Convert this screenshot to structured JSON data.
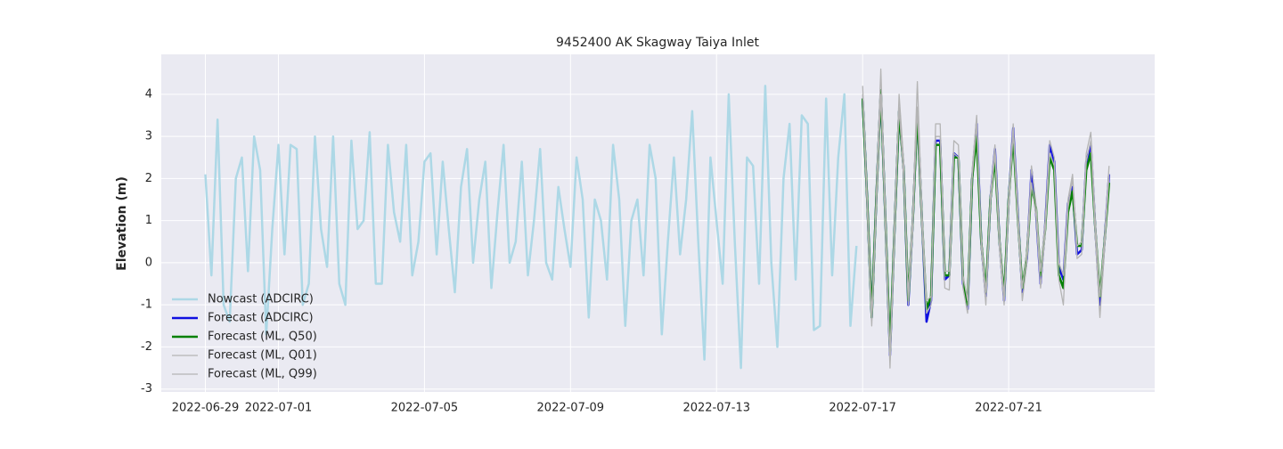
{
  "chart_data": {
    "type": "line",
    "title": "9452400 AK Skagway Taiya Inlet",
    "ylabel": "Elevation (m)",
    "xlim": [
      "2022-06-27T19:00",
      "2022-07-25T00:00"
    ],
    "xticks": [
      "2022-06-29",
      "2022-07-01",
      "2022-07-05",
      "2022-07-09",
      "2022-07-13",
      "2022-07-17",
      "2022-07-21"
    ],
    "ylim": [
      -3.07,
      4.95
    ],
    "yticks": [
      -3,
      -2,
      -1,
      0,
      1,
      2,
      3,
      4
    ],
    "grid": true,
    "legend": "lower left",
    "series": [
      {
        "name": "Nowcast (ADCIRC)",
        "color": "#add8e6",
        "width": 2.5,
        "x": [
          "2022-06-29T00:00",
          "2022-06-29T04:00",
          "2022-06-29T08:00",
          "2022-06-29T12:00",
          "2022-06-29T16:00",
          "2022-06-29T20:00",
          "2022-06-30T00:00",
          "2022-06-30T04:00",
          "2022-06-30T08:00",
          "2022-06-30T12:00",
          "2022-06-30T16:00",
          "2022-06-30T20:00",
          "2022-07-01T00:00",
          "2022-07-01T04:00",
          "2022-07-01T08:00",
          "2022-07-01T12:00",
          "2022-07-01T16:00",
          "2022-07-01T20:00",
          "2022-07-02T00:00",
          "2022-07-02T04:00",
          "2022-07-02T08:00",
          "2022-07-02T12:00",
          "2022-07-02T16:00",
          "2022-07-02T20:00",
          "2022-07-03T00:00",
          "2022-07-03T04:00",
          "2022-07-03T08:00",
          "2022-07-03T12:00",
          "2022-07-03T16:00",
          "2022-07-03T20:00",
          "2022-07-04T00:00",
          "2022-07-04T04:00",
          "2022-07-04T08:00",
          "2022-07-04T12:00",
          "2022-07-04T16:00",
          "2022-07-04T20:00",
          "2022-07-05T00:00",
          "2022-07-05T04:00",
          "2022-07-05T08:00",
          "2022-07-05T12:00",
          "2022-07-05T16:00",
          "2022-07-05T20:00",
          "2022-07-06T00:00",
          "2022-07-06T04:00",
          "2022-07-06T08:00",
          "2022-07-06T12:00",
          "2022-07-06T16:00",
          "2022-07-06T20:00",
          "2022-07-07T00:00",
          "2022-07-07T04:00",
          "2022-07-07T08:00",
          "2022-07-07T12:00",
          "2022-07-07T16:00",
          "2022-07-07T20:00",
          "2022-07-08T00:00",
          "2022-07-08T04:00",
          "2022-07-08T08:00",
          "2022-07-08T12:00",
          "2022-07-08T16:00",
          "2022-07-08T20:00",
          "2022-07-09T00:00",
          "2022-07-09T04:00",
          "2022-07-09T08:00",
          "2022-07-09T12:00",
          "2022-07-09T16:00",
          "2022-07-09T20:00",
          "2022-07-10T00:00",
          "2022-07-10T04:00",
          "2022-07-10T08:00",
          "2022-07-10T12:00",
          "2022-07-10T16:00",
          "2022-07-10T20:00",
          "2022-07-11T00:00",
          "2022-07-11T04:00",
          "2022-07-11T08:00",
          "2022-07-11T12:00",
          "2022-07-11T16:00",
          "2022-07-11T20:00",
          "2022-07-12T00:00",
          "2022-07-12T04:00",
          "2022-07-12T08:00",
          "2022-07-12T12:00",
          "2022-07-12T16:00",
          "2022-07-12T20:00",
          "2022-07-13T00:00",
          "2022-07-13T04:00",
          "2022-07-13T08:00",
          "2022-07-13T12:00",
          "2022-07-13T16:00",
          "2022-07-13T20:00",
          "2022-07-14T00:00",
          "2022-07-14T04:00",
          "2022-07-14T08:00",
          "2022-07-14T12:00",
          "2022-07-14T16:00",
          "2022-07-14T20:00",
          "2022-07-15T00:00",
          "2022-07-15T04:00",
          "2022-07-15T08:00",
          "2022-07-15T12:00",
          "2022-07-15T16:00",
          "2022-07-15T20:00",
          "2022-07-16T00:00",
          "2022-07-16T04:00",
          "2022-07-16T08:00",
          "2022-07-16T12:00",
          "2022-07-16T16:00",
          "2022-07-16T20:00"
        ],
        "values": [
          2.1,
          -0.3,
          3.4,
          -1.0,
          -1.4,
          2.0,
          2.5,
          -0.2,
          3.0,
          2.2,
          -1.7,
          0.8,
          2.8,
          0.2,
          2.8,
          2.7,
          -1.0,
          -0.5,
          3.0,
          0.8,
          -0.1,
          3.0,
          -0.5,
          -1.0,
          2.9,
          0.8,
          1.0,
          3.1,
          -0.5,
          -0.5,
          2.8,
          1.2,
          0.5,
          2.8,
          -0.3,
          0.5,
          2.4,
          2.6,
          0.2,
          2.4,
          0.8,
          -0.7,
          1.8,
          2.7,
          0.0,
          1.5,
          2.4,
          -0.6,
          1.2,
          2.8,
          0.0,
          0.5,
          2.4,
          -0.3,
          1.0,
          2.7,
          0.0,
          -0.4,
          1.8,
          0.8,
          -0.1,
          2.5,
          1.5,
          -1.3,
          1.5,
          1.0,
          -0.4,
          2.8,
          1.5,
          -1.5,
          1.0,
          1.5,
          -0.3,
          2.8,
          2.0,
          -1.7,
          0.5,
          2.5,
          0.2,
          1.5,
          3.6,
          0.5,
          -2.3,
          2.5,
          1.0,
          -0.5,
          4.0,
          0.5,
          -2.5,
          2.5,
          2.3,
          -0.5,
          4.2,
          0.0,
          -2.0,
          2.0,
          3.3,
          -0.4,
          3.5,
          3.3,
          -1.6,
          -1.5,
          3.9,
          -0.3,
          2.5,
          4.0,
          -1.5,
          0.4
        ]
      },
      {
        "name": "Forecast (ADCIRC)",
        "color": "#1010e0",
        "width": 2.5,
        "x": [
          "2022-07-17T00:00",
          "2022-07-17T03:00",
          "2022-07-17T06:00",
          "2022-07-17T09:00",
          "2022-07-17T12:00",
          "2022-07-17T15:00",
          "2022-07-17T18:00",
          "2022-07-17T21:00",
          "2022-07-18T00:00",
          "2022-07-18T03:00",
          "2022-07-18T06:00",
          "2022-07-18T09:00",
          "2022-07-18T12:00",
          "2022-07-18T15:00",
          "2022-07-18T18:00",
          "2022-07-18T21:00",
          "2022-07-19T00:00",
          "2022-07-19T03:00",
          "2022-07-19T06:00",
          "2022-07-19T09:00",
          "2022-07-19T12:00",
          "2022-07-19T15:00",
          "2022-07-19T18:00",
          "2022-07-19T21:00",
          "2022-07-20T00:00",
          "2022-07-20T03:00",
          "2022-07-20T06:00",
          "2022-07-20T09:00",
          "2022-07-20T12:00",
          "2022-07-20T15:00",
          "2022-07-20T18:00",
          "2022-07-20T21:00",
          "2022-07-21T00:00",
          "2022-07-21T03:00",
          "2022-07-21T06:00",
          "2022-07-21T09:00",
          "2022-07-21T12:00",
          "2022-07-21T15:00",
          "2022-07-21T18:00",
          "2022-07-21T21:00",
          "2022-07-22T00:00",
          "2022-07-22T03:00",
          "2022-07-22T06:00",
          "2022-07-22T09:00",
          "2022-07-22T12:00",
          "2022-07-22T15:00",
          "2022-07-22T18:00",
          "2022-07-22T21:00",
          "2022-07-23T00:00",
          "2022-07-23T03:00",
          "2022-07-23T06:00",
          "2022-07-23T09:00",
          "2022-07-23T12:00",
          "2022-07-23T15:00",
          "2022-07-23T18:00"
        ],
        "values": [
          3.9,
          1.5,
          -1.3,
          1.5,
          4.1,
          1.0,
          -2.2,
          0.8,
          3.6,
          2.2,
          -1.0,
          1.0,
          3.6,
          1.0,
          -1.4,
          -0.9,
          2.9,
          2.9,
          -0.4,
          -0.3,
          2.6,
          2.5,
          -0.5,
          -1.1,
          2.0,
          3.3,
          0.5,
          -0.8,
          1.5,
          2.7,
          0.5,
          -0.9,
          1.5,
          3.2,
          1.2,
          -0.7,
          0.1,
          2.2,
          1.2,
          -0.5,
          0.9,
          2.8,
          2.4,
          -0.1,
          -0.4,
          1.4,
          1.8,
          0.2,
          0.3,
          2.4,
          2.8,
          0.8,
          -1.0,
          0.5,
          2.1
        ]
      },
      {
        "name": "Forecast (ML, Q50)",
        "color": "#008000",
        "width": 2.5,
        "x": [
          "2022-07-17T00:00",
          "2022-07-17T03:00",
          "2022-07-17T06:00",
          "2022-07-17T09:00",
          "2022-07-17T12:00",
          "2022-07-17T15:00",
          "2022-07-17T18:00",
          "2022-07-17T21:00",
          "2022-07-18T00:00",
          "2022-07-18T03:00",
          "2022-07-18T06:00",
          "2022-07-18T09:00",
          "2022-07-18T12:00",
          "2022-07-18T15:00",
          "2022-07-18T18:00",
          "2022-07-18T21:00",
          "2022-07-19T00:00",
          "2022-07-19T03:00",
          "2022-07-19T06:00",
          "2022-07-19T09:00",
          "2022-07-19T12:00",
          "2022-07-19T15:00",
          "2022-07-19T18:00",
          "2022-07-19T21:00",
          "2022-07-20T00:00",
          "2022-07-20T03:00",
          "2022-07-20T06:00",
          "2022-07-20T09:00",
          "2022-07-20T12:00",
          "2022-07-20T15:00",
          "2022-07-20T18:00",
          "2022-07-20T21:00",
          "2022-07-21T00:00",
          "2022-07-21T03:00",
          "2022-07-21T06:00",
          "2022-07-21T09:00",
          "2022-07-21T12:00",
          "2022-07-21T15:00",
          "2022-07-21T18:00",
          "2022-07-21T21:00",
          "2022-07-22T00:00",
          "2022-07-22T03:00",
          "2022-07-22T06:00",
          "2022-07-22T09:00",
          "2022-07-22T12:00",
          "2022-07-22T15:00",
          "2022-07-22T18:00",
          "2022-07-22T21:00",
          "2022-07-23T00:00",
          "2022-07-23T03:00",
          "2022-07-23T06:00",
          "2022-07-23T09:00",
          "2022-07-23T12:00",
          "2022-07-23T15:00",
          "2022-07-23T18:00"
        ],
        "values": [
          3.9,
          1.5,
          -1.3,
          1.5,
          4.1,
          1.0,
          -2.1,
          0.8,
          3.6,
          2.2,
          -0.9,
          1.0,
          3.6,
          1.0,
          -1.1,
          -0.8,
          2.8,
          2.8,
          -0.3,
          -0.3,
          2.5,
          2.5,
          -0.4,
          -1.0,
          2.0,
          3.0,
          0.5,
          -0.7,
          1.5,
          2.5,
          0.5,
          -0.8,
          1.5,
          3.0,
          1.1,
          -0.6,
          0.2,
          1.8,
          1.3,
          -0.3,
          0.8,
          2.5,
          2.2,
          -0.3,
          -0.6,
          1.2,
          1.7,
          0.4,
          0.4,
          2.2,
          2.6,
          0.8,
          -0.8,
          0.5,
          1.9
        ]
      },
      {
        "name": "Forecast (ML, Q01)",
        "color": "#b4b4b4",
        "width": 1.3,
        "x": [
          "2022-07-17T00:00",
          "2022-07-17T03:00",
          "2022-07-17T06:00",
          "2022-07-17T09:00",
          "2022-07-17T12:00",
          "2022-07-17T15:00",
          "2022-07-17T18:00",
          "2022-07-17T21:00",
          "2022-07-18T00:00",
          "2022-07-18T03:00",
          "2022-07-18T06:00",
          "2022-07-18T09:00",
          "2022-07-18T12:00",
          "2022-07-18T15:00",
          "2022-07-18T18:00",
          "2022-07-18T21:00",
          "2022-07-19T00:00",
          "2022-07-19T03:00",
          "2022-07-19T06:00",
          "2022-07-19T09:00",
          "2022-07-19T12:00",
          "2022-07-19T15:00",
          "2022-07-19T18:00",
          "2022-07-19T21:00",
          "2022-07-20T00:00",
          "2022-07-20T03:00",
          "2022-07-20T06:00",
          "2022-07-20T09:00",
          "2022-07-20T12:00",
          "2022-07-20T15:00",
          "2022-07-20T18:00",
          "2022-07-20T21:00",
          "2022-07-21T00:00",
          "2022-07-21T03:00",
          "2022-07-21T06:00",
          "2022-07-21T09:00",
          "2022-07-21T12:00",
          "2022-07-21T15:00",
          "2022-07-21T18:00",
          "2022-07-21T21:00",
          "2022-07-22T00:00",
          "2022-07-22T03:00",
          "2022-07-22T06:00",
          "2022-07-22T09:00",
          "2022-07-22T12:00",
          "2022-07-22T15:00",
          "2022-07-22T18:00",
          "2022-07-22T21:00",
          "2022-07-23T00:00",
          "2022-07-23T03:00",
          "2022-07-23T06:00",
          "2022-07-23T09:00",
          "2022-07-23T12:00",
          "2022-07-23T15:00",
          "2022-07-23T18:00"
        ],
        "values": [
          4.0,
          1.3,
          -1.5,
          1.3,
          4.0,
          0.8,
          -2.5,
          0.6,
          3.7,
          2.0,
          -1.0,
          0.8,
          3.7,
          0.8,
          -1.2,
          -1.0,
          3.0,
          3.0,
          -0.6,
          -0.65,
          2.6,
          2.5,
          -0.6,
          -1.2,
          2.0,
          3.3,
          0.4,
          -1.0,
          1.4,
          2.6,
          0.3,
          -1.0,
          1.3,
          3.1,
          1.0,
          -0.9,
          0.0,
          1.9,
          1.1,
          -0.6,
          0.7,
          2.6,
          2.3,
          -0.4,
          -1.0,
          1.3,
          2.0,
          0.1,
          0.2,
          2.4,
          2.9,
          0.6,
          -1.3,
          0.3,
          2.1
        ]
      },
      {
        "name": "Forecast (ML, Q99)",
        "color": "#b4b4b4",
        "width": 1.3,
        "x": [
          "2022-07-17T00:00",
          "2022-07-17T03:00",
          "2022-07-17T06:00",
          "2022-07-17T09:00",
          "2022-07-17T12:00",
          "2022-07-17T15:00",
          "2022-07-17T18:00",
          "2022-07-17T21:00",
          "2022-07-18T00:00",
          "2022-07-18T03:00",
          "2022-07-18T06:00",
          "2022-07-18T09:00",
          "2022-07-18T12:00",
          "2022-07-18T15:00",
          "2022-07-18T18:00",
          "2022-07-18T21:00",
          "2022-07-19T00:00",
          "2022-07-19T03:00",
          "2022-07-19T06:00",
          "2022-07-19T09:00",
          "2022-07-19T12:00",
          "2022-07-19T15:00",
          "2022-07-19T18:00",
          "2022-07-19T21:00",
          "2022-07-20T00:00",
          "2022-07-20T03:00",
          "2022-07-20T06:00",
          "2022-07-20T09:00",
          "2022-07-20T12:00",
          "2022-07-20T15:00",
          "2022-07-20T18:00",
          "2022-07-20T21:00",
          "2022-07-21T00:00",
          "2022-07-21T03:00",
          "2022-07-21T06:00",
          "2022-07-21T09:00",
          "2022-07-21T12:00",
          "2022-07-21T15:00",
          "2022-07-21T18:00",
          "2022-07-21T21:00",
          "2022-07-22T00:00",
          "2022-07-22T03:00",
          "2022-07-22T06:00",
          "2022-07-22T09:00",
          "2022-07-22T12:00",
          "2022-07-22T15:00",
          "2022-07-22T18:00",
          "2022-07-22T21:00",
          "2022-07-23T00:00",
          "2022-07-23T03:00",
          "2022-07-23T06:00",
          "2022-07-23T09:00",
          "2022-07-23T12:00",
          "2022-07-23T15:00",
          "2022-07-23T18:00"
        ],
        "values": [
          4.2,
          1.6,
          -1.3,
          1.6,
          4.6,
          1.2,
          -2.2,
          1.0,
          4.0,
          2.4,
          -0.8,
          1.2,
          4.3,
          1.2,
          -0.9,
          -0.8,
          3.3,
          3.3,
          -0.2,
          -0.2,
          2.9,
          2.8,
          -0.3,
          -0.9,
          2.2,
          3.5,
          0.6,
          -0.7,
          1.6,
          2.8,
          0.6,
          -0.8,
          1.6,
          3.3,
          1.3,
          -0.6,
          0.3,
          2.3,
          1.4,
          -0.2,
          1.0,
          2.9,
          2.5,
          0.0,
          -0.3,
          1.5,
          2.1,
          0.4,
          0.5,
          2.6,
          3.1,
          1.0,
          -0.8,
          0.6,
          2.3
        ]
      }
    ]
  }
}
